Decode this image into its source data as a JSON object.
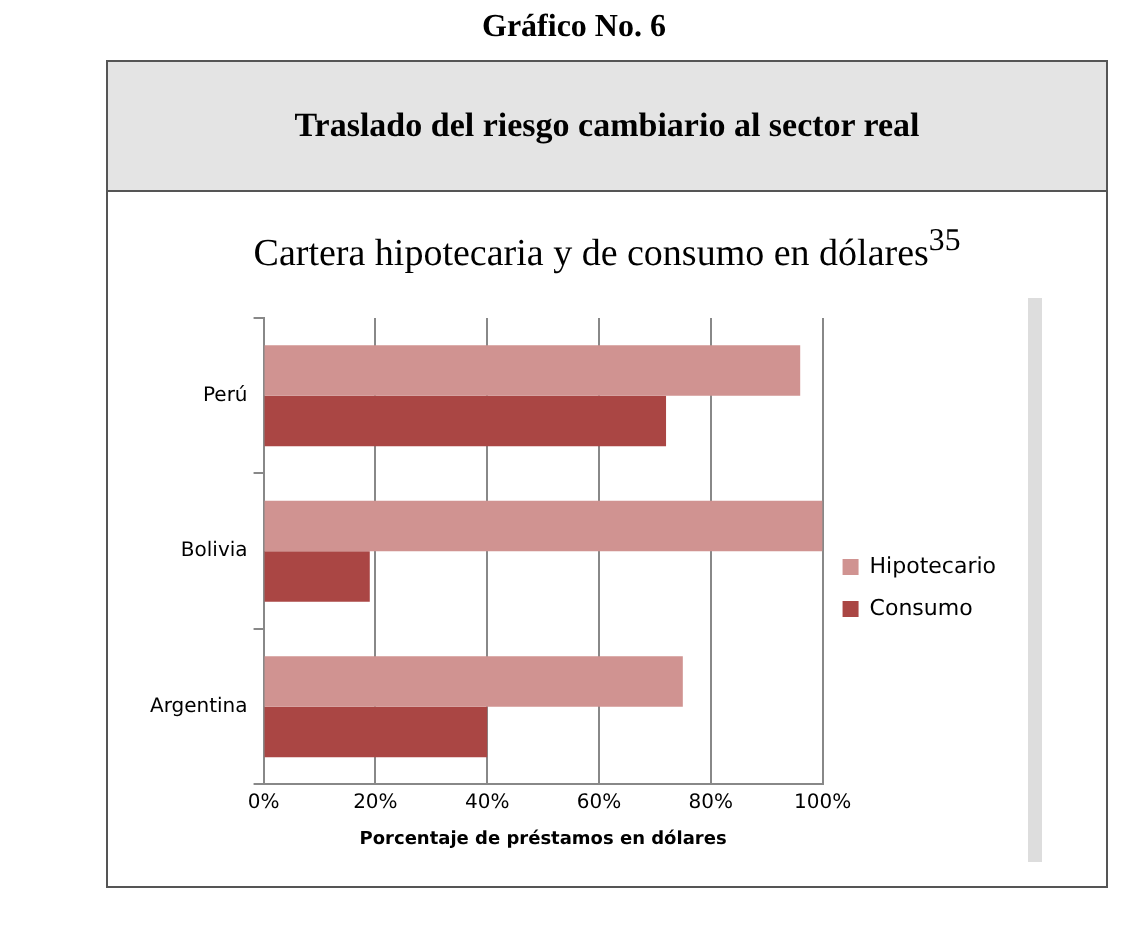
{
  "chart_data": {
    "type": "bar",
    "orientation": "horizontal",
    "annotations": [
      "Gráfico No. 6"
    ],
    "title": "Traslado del riesgo cambiario al sector real",
    "subtitle": "Cartera hipotecaria y de consumo en dólares$^{35}$",
    "xlabel": "Porcentaje de préstamos en dólares",
    "categories": [
      "Perú",
      "Bolivia",
      "Argentina"
    ],
    "series": [
      {
        "name": "Hipotecario",
        "color": "#d09391",
        "values": [
          96,
          100,
          75
        ]
      },
      {
        "name": "Consumo",
        "color": "#aa4644",
        "values": [
          72,
          19,
          40
        ]
      }
    ],
    "xlim": [
      0,
      100
    ],
    "xticks": [
      {
        "value": 0,
        "label": "0%"
      },
      {
        "value": 20,
        "label": "20%"
      },
      {
        "value": 40,
        "label": "40%"
      },
      {
        "value": 60,
        "label": "60%"
      },
      {
        "value": 80,
        "label": "80%"
      },
      {
        "value": 100,
        "label": "100%"
      }
    ],
    "grid": "x",
    "legend": "right"
  }
}
